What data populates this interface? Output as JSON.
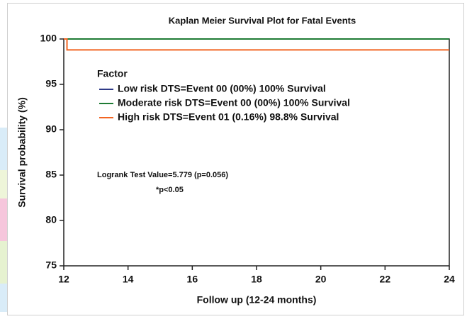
{
  "chart_data": {
    "type": "line",
    "step": true,
    "title": "Kaplan Meier Survival Plot for Fatal Events",
    "x_label": "Follow up (12-24 months)",
    "y_label": "Survival probability (%)",
    "legend_title": "Factor",
    "annotations": [
      "Logrank Test Value=5.779 (p=0.056)",
      "*p<0.05"
    ],
    "xlim": [
      12,
      24
    ],
    "xticks": [
      12,
      14,
      16,
      18,
      20,
      22,
      24
    ],
    "ylim": [
      75,
      100
    ],
    "yticks": [
      75,
      80,
      85,
      90,
      95,
      100
    ],
    "series": [
      {
        "name": "Low risk DTS=Event 00 (00%) 100% Survival",
        "color": "#2e3a87",
        "x": [
          12,
          24
        ],
        "values": [
          100,
          100
        ]
      },
      {
        "name": "Moderate risk DTS=Event 00 (00%) 100% Survival",
        "color": "#1e7b34",
        "x": [
          12,
          24
        ],
        "values": [
          100,
          100
        ]
      },
      {
        "name": "High risk DTS=Event 01 (0.16%) 98.8% Survival",
        "color": "#f26522",
        "x": [
          12,
          12.1,
          12.1,
          24
        ],
        "values": [
          100,
          100,
          98.8,
          98.8
        ]
      }
    ]
  }
}
